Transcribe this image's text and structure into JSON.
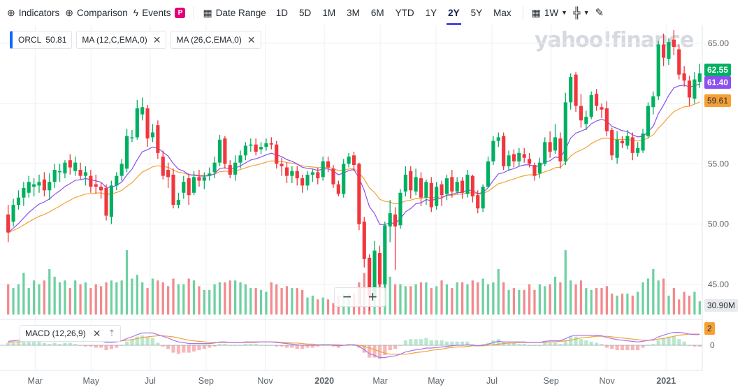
{
  "toolbar": {
    "indicators": "Indicators",
    "comparison": "Comparison",
    "events": "Events",
    "events_badge": "P",
    "date_range": "Date Range",
    "ranges": [
      "1D",
      "5D",
      "1M",
      "3M",
      "6M",
      "YTD",
      "1Y",
      "2Y",
      "5Y",
      "Max"
    ],
    "selected_range": "2Y",
    "interval": "1W"
  },
  "legend": {
    "symbol": "ORCL",
    "price": "50.81",
    "ma1": "MA (12,C,EMA,0)",
    "ma2": "MA (26,C,EMA,0)"
  },
  "macd_label": "MACD (12,26,9)",
  "watermark": "yahoo!finance",
  "tags": {
    "last_price": "62.55",
    "ma12_last": "61.40",
    "ma26_last": "59.61",
    "volume_last": "30.90M",
    "macd_last": "2"
  },
  "colors": {
    "up": "#00b061",
    "down": "#f0373d",
    "ma12": "#8c4ff0",
    "ma26": "#f5a036",
    "macd_signal": "#f5a036",
    "macd_line": "#a678f0",
    "accent": "#4f46e5"
  },
  "chart_data": {
    "type": "candlestick",
    "x_ticks": [
      "Mar",
      "May",
      "Jul",
      "Sep",
      "Nov",
      "2020",
      "Mar",
      "May",
      "Jul",
      "Sep",
      "Nov",
      "2021"
    ],
    "price_ticks": [
      45,
      50,
      55,
      60,
      65
    ],
    "ylim": [
      42.5,
      66.5
    ],
    "macd_ticks": [
      0
    ],
    "candles": [
      [
        50.8,
        49.3,
        51.6,
        48.5
      ],
      [
        50.2,
        51.6,
        52.1,
        49.8
      ],
      [
        51.6,
        52.2,
        52.8,
        51.2
      ],
      [
        52.2,
        53.0,
        53.5,
        51.5
      ],
      [
        52.6,
        53.5,
        54.0,
        52.2
      ],
      [
        53.1,
        53.3,
        53.8,
        52.3
      ],
      [
        53.2,
        53.5,
        54.1,
        52.6
      ],
      [
        53.7,
        52.8,
        54.3,
        52.3
      ],
      [
        52.8,
        53.5,
        54.2,
        52.0
      ],
      [
        53.5,
        54.5,
        55.0,
        53.0
      ],
      [
        54.3,
        54.4,
        55.0,
        53.5
      ],
      [
        54.2,
        55.1,
        55.3,
        53.8
      ],
      [
        55.3,
        54.7,
        55.8,
        54.1
      ],
      [
        54.4,
        55.1,
        55.6,
        54.0
      ],
      [
        54.5,
        54.0,
        55.1,
        53.7
      ],
      [
        54.0,
        54.3,
        54.8,
        53.2
      ],
      [
        54.0,
        53.1,
        54.5,
        52.6
      ],
      [
        53.3,
        53.1,
        54.1,
        52.5
      ],
      [
        53.1,
        52.8,
        53.4,
        52.1
      ],
      [
        53.0,
        50.7,
        53.3,
        50.3
      ],
      [
        50.6,
        53.2,
        53.6,
        50.0
      ],
      [
        53.2,
        54.0,
        54.3,
        52.8
      ],
      [
        54.0,
        55.0,
        55.4,
        53.6
      ],
      [
        54.6,
        57.3,
        57.9,
        54.3
      ],
      [
        57.2,
        57.2,
        57.8,
        56.8
      ],
      [
        57.2,
        59.6,
        60.3,
        57.0
      ],
      [
        59.1,
        59.7,
        60.5,
        58.6
      ],
      [
        59.6,
        57.1,
        59.9,
        56.4
      ],
      [
        57.2,
        57.6,
        58.3,
        56.8
      ],
      [
        58.2,
        55.9,
        58.6,
        55.4
      ],
      [
        55.6,
        54.0,
        56.1,
        53.7
      ],
      [
        54.5,
        53.9,
        55.1,
        53.0
      ],
      [
        54.1,
        51.6,
        54.6,
        51.3
      ],
      [
        51.6,
        52.0,
        52.6,
        51.3
      ],
      [
        52.6,
        53.5,
        54.0,
        52.1
      ],
      [
        53.8,
        52.4,
        54.2,
        51.6
      ],
      [
        52.6,
        53.9,
        54.4,
        52.4
      ],
      [
        53.9,
        53.6,
        54.5,
        53.1
      ],
      [
        53.6,
        53.9,
        54.3,
        52.9
      ],
      [
        54.0,
        54.2,
        54.7,
        53.6
      ],
      [
        54.3,
        55.1,
        55.6,
        53.8
      ],
      [
        55.1,
        57.0,
        57.4,
        54.8
      ],
      [
        57.1,
        55.0,
        57.3,
        54.6
      ],
      [
        54.9,
        54.1,
        55.3,
        53.8
      ],
      [
        54.1,
        55.1,
        55.7,
        53.6
      ],
      [
        55.1,
        55.7,
        56.1,
        54.6
      ],
      [
        55.7,
        56.5,
        56.8,
        55.3
      ],
      [
        56.5,
        56.6,
        57.1,
        56.0
      ],
      [
        56.6,
        56.0,
        57.1,
        55.7
      ],
      [
        56.2,
        56.4,
        56.8,
        55.8
      ],
      [
        56.4,
        56.7,
        57.1,
        56.1
      ],
      [
        56.7,
        56.6,
        57.2,
        56.2
      ],
      [
        56.6,
        55.0,
        56.9,
        54.6
      ],
      [
        55.0,
        54.8,
        55.5,
        54.0
      ],
      [
        54.7,
        54.0,
        55.1,
        53.4
      ],
      [
        54.0,
        54.4,
        54.8,
        53.4
      ],
      [
        54.4,
        53.8,
        54.8,
        53.2
      ],
      [
        53.8,
        53.2,
        54.1,
        52.6
      ],
      [
        53.2,
        54.1,
        54.4,
        52.8
      ],
      [
        54.1,
        54.3,
        54.6,
        53.5
      ],
      [
        54.3,
        53.8,
        54.7,
        53.3
      ],
      [
        53.9,
        55.2,
        55.6,
        53.6
      ],
      [
        55.2,
        54.7,
        55.6,
        54.3
      ],
      [
        54.6,
        53.3,
        54.9,
        53.0
      ],
      [
        53.3,
        52.5,
        53.6,
        52.3
      ],
      [
        52.5,
        55.0,
        55.4,
        52.2
      ],
      [
        55.0,
        55.6,
        55.9,
        54.7
      ],
      [
        55.7,
        54.9,
        56.0,
        54.4
      ],
      [
        55.0,
        50.0,
        55.1,
        49.5
      ],
      [
        50.2,
        47.1,
        50.6,
        46.4
      ],
      [
        47.2,
        44.0,
        47.5,
        42.8
      ],
      [
        44.0,
        47.8,
        48.6,
        43.6
      ],
      [
        47.6,
        45.0,
        48.2,
        43.2
      ],
      [
        45.0,
        49.9,
        50.2,
        44.4
      ],
      [
        49.8,
        50.9,
        52.0,
        48.5
      ],
      [
        50.8,
        49.8,
        51.4,
        46.2
      ],
      [
        49.9,
        52.6,
        52.9,
        49.6
      ],
      [
        52.7,
        54.1,
        54.8,
        52.3
      ],
      [
        54.4,
        52.8,
        54.8,
        52.1
      ],
      [
        52.7,
        53.9,
        54.6,
        52.4
      ],
      [
        53.8,
        52.2,
        54.3,
        51.5
      ],
      [
        52.2,
        53.5,
        53.7,
        51.6
      ],
      [
        53.4,
        51.4,
        53.9,
        51.0
      ],
      [
        51.5,
        53.1,
        53.5,
        51.2
      ],
      [
        53.3,
        52.4,
        53.6,
        51.5
      ],
      [
        52.5,
        53.8,
        54.1,
        52.0
      ],
      [
        53.9,
        52.7,
        54.5,
        52.2
      ],
      [
        52.7,
        53.5,
        53.9,
        52.5
      ],
      [
        53.6,
        52.6,
        53.9,
        52.1
      ],
      [
        52.5,
        54.1,
        54.5,
        52.2
      ],
      [
        54.0,
        52.3,
        54.1,
        51.8
      ],
      [
        52.4,
        51.3,
        52.8,
        50.9
      ],
      [
        51.3,
        53.1,
        53.3,
        51.0
      ],
      [
        53.1,
        55.2,
        55.6,
        53.0
      ],
      [
        55.2,
        56.9,
        57.3,
        54.9
      ],
      [
        56.9,
        57.2,
        57.6,
        56.4
      ],
      [
        57.3,
        54.8,
        57.6,
        54.5
      ],
      [
        54.8,
        55.7,
        56.1,
        54.4
      ],
      [
        55.8,
        55.2,
        56.2,
        54.7
      ],
      [
        55.2,
        55.9,
        56.3,
        54.8
      ],
      [
        55.8,
        55.5,
        56.3,
        55.1
      ],
      [
        55.4,
        55.0,
        55.9,
        54.7
      ],
      [
        54.9,
        54.0,
        55.1,
        53.6
      ],
      [
        54.2,
        55.1,
        55.5,
        53.8
      ],
      [
        55.0,
        56.8,
        57.2,
        54.8
      ],
      [
        56.8,
        56.0,
        57.7,
        55.5
      ],
      [
        56.1,
        57.2,
        58.3,
        55.8
      ],
      [
        57.1,
        55.2,
        57.6,
        54.6
      ],
      [
        55.2,
        60.1,
        60.9,
        54.9
      ],
      [
        60.1,
        62.2,
        62.5,
        59.5
      ],
      [
        62.4,
        59.8,
        62.6,
        59.3
      ],
      [
        59.8,
        58.6,
        60.8,
        58.0
      ],
      [
        58.3,
        58.9,
        59.4,
        57.8
      ],
      [
        58.9,
        60.7,
        61.0,
        58.7
      ],
      [
        60.8,
        59.8,
        61.2,
        59.4
      ],
      [
        59.7,
        59.5,
        60.0,
        58.8
      ],
      [
        59.6,
        57.7,
        60.2,
        57.3
      ],
      [
        57.8,
        55.7,
        58.0,
        55.3
      ],
      [
        55.5,
        57.0,
        57.7,
        55.0
      ],
      [
        56.9,
        56.7,
        57.3,
        56.3
      ],
      [
        56.5,
        57.3,
        57.8,
        56.2
      ],
      [
        57.2,
        55.9,
        57.6,
        55.3
      ],
      [
        55.9,
        56.3,
        56.8,
        55.6
      ],
      [
        56.1,
        57.5,
        57.9,
        55.9
      ],
      [
        57.3,
        59.8,
        60.1,
        57.1
      ],
      [
        59.7,
        60.6,
        61.0,
        59.1
      ],
      [
        60.6,
        64.9,
        65.2,
        60.3
      ],
      [
        64.9,
        63.8,
        65.8,
        63.1
      ],
      [
        63.7,
        65.1,
        65.4,
        63.2
      ],
      [
        65.3,
        64.7,
        66.1,
        64.0
      ],
      [
        64.5,
        62.4,
        64.9,
        62.0
      ],
      [
        62.5,
        61.9,
        63.1,
        61.4
      ],
      [
        61.9,
        60.5,
        62.3,
        59.8
      ],
      [
        60.4,
        62.0,
        62.6,
        60.0
      ],
      [
        61.8,
        62.5,
        63.3,
        61.3
      ]
    ],
    "volume": [
      16,
      14,
      16,
      22,
      14,
      18,
      16,
      18,
      24,
      20,
      17,
      18,
      14,
      18,
      16,
      17,
      14,
      16,
      15,
      17,
      18,
      17,
      18,
      34,
      19,
      21,
      17,
      14,
      19,
      18,
      17,
      15,
      19,
      16,
      16,
      19,
      18,
      15,
      13,
      13,
      16,
      17,
      17,
      18,
      18,
      17,
      16,
      14,
      14,
      13,
      12,
      17,
      16,
      14,
      15,
      14,
      14,
      13,
      9,
      10,
      8,
      9,
      8,
      6,
      10,
      11,
      11,
      11,
      17,
      22,
      30,
      29,
      32,
      22,
      20,
      16,
      16,
      15,
      15,
      16,
      17,
      17,
      14,
      15,
      18,
      16,
      14,
      17,
      17,
      16,
      18,
      17,
      19,
      16,
      17,
      24,
      17,
      13,
      14,
      13,
      13,
      16,
      13,
      16,
      15,
      16,
      20,
      17,
      34,
      18,
      16,
      18,
      14,
      13,
      14,
      14,
      15,
      11,
      10,
      11,
      11,
      10,
      12,
      17,
      19,
      24,
      18,
      19,
      10,
      14,
      8,
      12,
      10,
      12,
      7
    ],
    "macd": [
      0.7,
      0.8,
      0.9,
      1.0,
      1.1,
      1.1,
      1.2,
      1.1,
      1.1,
      1.2,
      1.2,
      1.3,
      1.3,
      1.3,
      1.2,
      1.1,
      1.0,
      0.9,
      0.8,
      0.5,
      0.5,
      0.6,
      0.8,
      1.2,
      1.5,
      1.9,
      2.2,
      2.2,
      2.2,
      1.9,
      1.6,
      1.3,
      0.9,
      0.6,
      0.5,
      0.3,
      0.3,
      0.3,
      0.3,
      0.3,
      0.4,
      0.6,
      0.6,
      0.5,
      0.5,
      0.5,
      0.6,
      0.6,
      0.6,
      0.6,
      0.6,
      0.6,
      0.5,
      0.4,
      0.3,
      0.2,
      0.1,
      0.0,
      0.0,
      0.0,
      0.0,
      0.1,
      0.1,
      0.0,
      -0.1,
      0.0,
      0.1,
      0.1,
      -0.2,
      -0.8,
      -1.5,
      -1.8,
      -2.2,
      -2.2,
      -2.0,
      -1.9,
      -1.6,
      -1.2,
      -1.0,
      -0.8,
      -0.7,
      -0.5,
      -0.5,
      -0.4,
      -0.3,
      -0.2,
      -0.1,
      0.0,
      0.0,
      0.1,
      0.0,
      -0.1,
      0.0,
      0.2,
      0.5,
      0.7,
      0.6,
      0.6,
      0.6,
      0.6,
      0.6,
      0.5,
      0.5,
      0.5,
      0.7,
      0.8,
      0.8,
      0.8,
      1.2,
      1.6,
      1.8,
      1.8,
      1.8,
      1.8,
      1.8,
      1.7,
      1.4,
      1.2,
      1.0,
      0.9,
      0.8,
      0.7,
      0.6,
      0.7,
      0.9,
      1.0,
      1.5,
      1.8,
      2.1,
      2.3,
      2.3,
      2.2,
      2.0,
      1.9,
      1.9
    ],
    "macd_signal": [
      0.5,
      0.6,
      0.6,
      0.7,
      0.8,
      0.8,
      0.9,
      0.9,
      1.0,
      1.0,
      1.1,
      1.1,
      1.1,
      1.2,
      1.2,
      1.2,
      1.1,
      1.1,
      1.0,
      0.9,
      0.8,
      0.8,
      0.8,
      0.9,
      1.0,
      1.2,
      1.4,
      1.5,
      1.6,
      1.7,
      1.7,
      1.6,
      1.5,
      1.3,
      1.1,
      0.9,
      0.8,
      0.7,
      0.6,
      0.5,
      0.5,
      0.5,
      0.5,
      0.5,
      0.5,
      0.5,
      0.5,
      0.5,
      0.5,
      0.6,
      0.6,
      0.6,
      0.6,
      0.5,
      0.5,
      0.4,
      0.4,
      0.3,
      0.2,
      0.2,
      0.1,
      0.1,
      0.1,
      0.1,
      0.1,
      0.0,
      0.0,
      0.1,
      0.0,
      -0.2,
      -0.5,
      -0.8,
      -1.1,
      -1.4,
      -1.6,
      -1.6,
      -1.6,
      -1.6,
      -1.5,
      -1.3,
      -1.2,
      -1.1,
      -0.9,
      -0.8,
      -0.7,
      -0.5,
      -0.4,
      -0.3,
      -0.3,
      -0.2,
      -0.1,
      -0.1,
      -0.1,
      0.0,
      0.1,
      0.2,
      0.3,
      0.4,
      0.4,
      0.5,
      0.5,
      0.5,
      0.5,
      0.5,
      0.5,
      0.6,
      0.6,
      0.7,
      0.8,
      0.9,
      1.1,
      1.3,
      1.4,
      1.5,
      1.6,
      1.6,
      1.6,
      1.5,
      1.4,
      1.3,
      1.2,
      1.1,
      1.0,
      0.9,
      0.9,
      0.9,
      1.1,
      1.2,
      1.4,
      1.6,
      1.8,
      1.9,
      2.0,
      2.0,
      2.0
    ]
  }
}
